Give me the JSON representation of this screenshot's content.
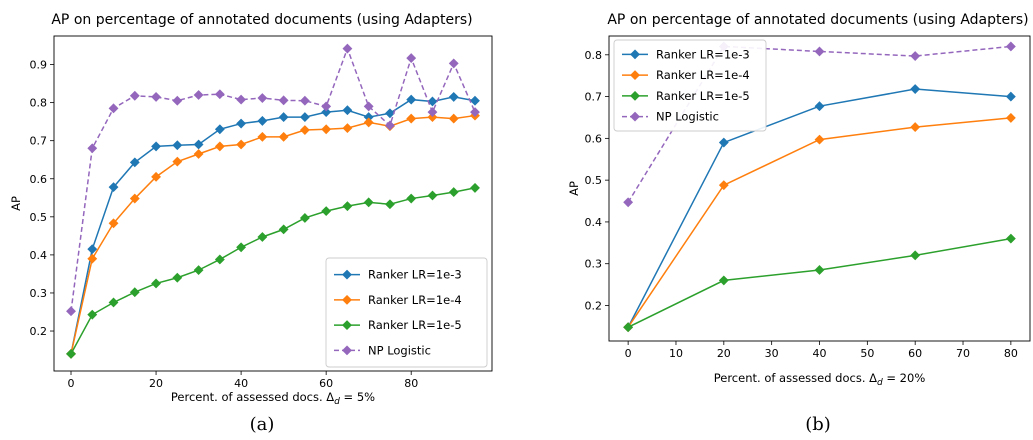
{
  "chart_data": [
    {
      "type": "line",
      "title": "AP on percentage of annotated documents (using Adapters)",
      "xlabel_prefix": "Percent. of assessed docs. Δ",
      "xlabel_sub": "d",
      "xlabel_suffix": " = 5%",
      "ylabel": "AP",
      "caption": "(a)",
      "xlim": [
        -4,
        99
      ],
      "ylim": [
        0.095,
        0.975
      ],
      "xticks": [
        0,
        20,
        40,
        60,
        80
      ],
      "yticks": [
        0.2,
        0.3,
        0.4,
        0.5,
        0.6,
        0.7,
        0.8,
        0.9
      ],
      "legend_position": "lower-right",
      "x": [
        0,
        5,
        10,
        15,
        20,
        25,
        30,
        35,
        40,
        45,
        50,
        55,
        60,
        65,
        70,
        75,
        80,
        85,
        90,
        95
      ],
      "series": [
        {
          "name": "Ranker LR=1e-3",
          "color": "#1f77b4",
          "style": "solid",
          "values": [
            0.14,
            0.415,
            0.578,
            0.643,
            0.685,
            0.688,
            0.69,
            0.73,
            0.745,
            0.752,
            0.762,
            0.762,
            0.775,
            0.78,
            0.762,
            0.772,
            0.808,
            0.803,
            0.815,
            0.805
          ]
        },
        {
          "name": "Ranker LR=1e-4",
          "color": "#ff7f0e",
          "style": "solid",
          "values": [
            0.14,
            0.39,
            0.483,
            0.548,
            0.605,
            0.645,
            0.665,
            0.685,
            0.69,
            0.71,
            0.71,
            0.728,
            0.73,
            0.733,
            0.748,
            0.738,
            0.758,
            0.762,
            0.758,
            0.766
          ]
        },
        {
          "name": "Ranker LR=1e-5",
          "color": "#2ca02c",
          "style": "solid",
          "values": [
            0.14,
            0.243,
            0.275,
            0.302,
            0.325,
            0.34,
            0.36,
            0.388,
            0.42,
            0.447,
            0.467,
            0.497,
            0.515,
            0.528,
            0.538,
            0.533,
            0.548,
            0.556,
            0.565,
            0.576
          ]
        },
        {
          "name": "NP Logistic",
          "color": "#9467bd",
          "style": "dashed",
          "values": [
            0.252,
            0.68,
            0.785,
            0.818,
            0.815,
            0.805,
            0.82,
            0.822,
            0.808,
            0.812,
            0.806,
            0.805,
            0.79,
            0.942,
            0.79,
            0.74,
            0.917,
            0.775,
            0.903,
            0.775
          ]
        }
      ]
    },
    {
      "type": "line",
      "title": "AP on percentage of annotated documents (using Adapters)",
      "xlabel_prefix": "Percent. of assessed docs. Δ",
      "xlabel_sub": "d",
      "xlabel_suffix": " = 20%",
      "ylabel": "AP",
      "caption": "(b)",
      "xlim": [
        -4,
        84
      ],
      "ylim": [
        0.115,
        0.845
      ],
      "xticks": [
        0,
        10,
        20,
        30,
        40,
        50,
        60,
        70,
        80
      ],
      "yticks": [
        0.2,
        0.3,
        0.4,
        0.5,
        0.6,
        0.7,
        0.8
      ],
      "legend_position": "upper-left",
      "x": [
        0,
        20,
        40,
        60,
        80
      ],
      "series": [
        {
          "name": "Ranker LR=1e-3",
          "color": "#1f77b4",
          "style": "solid",
          "values": [
            0.148,
            0.59,
            0.677,
            0.718,
            0.7
          ]
        },
        {
          "name": "Ranker LR=1e-4",
          "color": "#ff7f0e",
          "style": "solid",
          "values": [
            0.148,
            0.488,
            0.597,
            0.627,
            0.649
          ]
        },
        {
          "name": "Ranker LR=1e-5",
          "color": "#2ca02c",
          "style": "solid",
          "values": [
            0.148,
            0.26,
            0.285,
            0.32,
            0.36
          ]
        },
        {
          "name": "NP Logistic",
          "color": "#9467bd",
          "style": "dashed",
          "values": [
            0.447,
            0.82,
            0.808,
            0.797,
            0.82
          ]
        }
      ]
    }
  ]
}
